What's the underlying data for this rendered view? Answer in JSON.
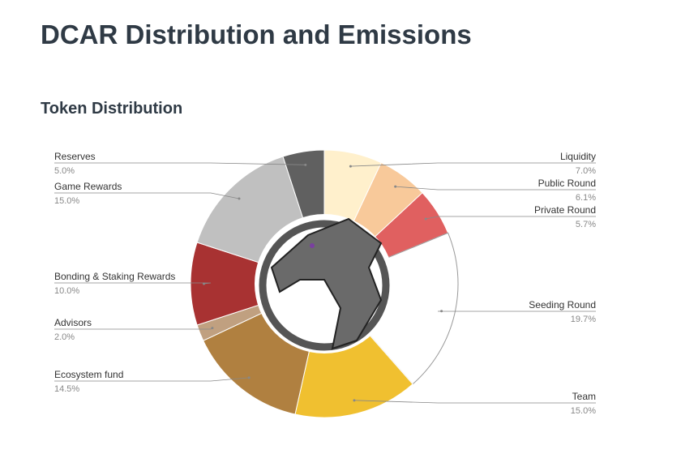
{
  "heading": "DCAR Distribution and Emissions",
  "chart_data": {
    "type": "pie",
    "title": "Token Distribution",
    "categories": [
      "Liquidity",
      "Public Round",
      "Private Round",
      "Seeding Round",
      "Team",
      "Ecosystem fund",
      "Advisors",
      "Bonding & Staking Rewards",
      "Game Rewards",
      "Reserves"
    ],
    "values": [
      7.0,
      6.1,
      5.7,
      19.7,
      15.0,
      14.5,
      2.0,
      10.0,
      15.0,
      5.0
    ],
    "value_labels": [
      "7.0%",
      "6.1%",
      "5.7%",
      "19.7%",
      "15.0%",
      "14.5%",
      "2.0%",
      "10.0%",
      "15.0%",
      "5.0%"
    ],
    "colors": [
      "#fff0cc",
      "#f8c99a",
      "#e06060",
      "#ffffff",
      "#f0c030",
      "#b08040",
      "#c0a080",
      "#a83232",
      "#c0c0c0",
      "#606060"
    ]
  }
}
